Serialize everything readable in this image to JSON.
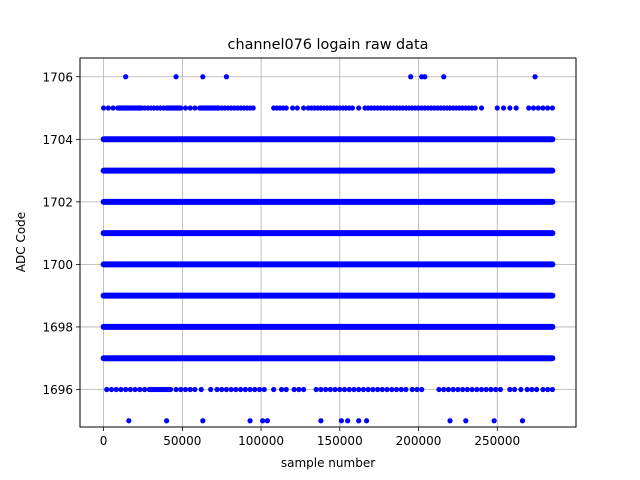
{
  "chart_data": {
    "type": "scatter",
    "title": "channel076 logain raw data",
    "xlabel": "sample number",
    "ylabel": "ADC Code",
    "xlim": [
      -15000,
      300000
    ],
    "ylim": [
      1694.8,
      1706.6
    ],
    "x_ticks": [
      0,
      50000,
      100000,
      150000,
      200000,
      250000
    ],
    "x_tick_labels": [
      "0",
      "50000",
      "100000",
      "150000",
      "200000",
      "250000"
    ],
    "y_ticks": [
      1696,
      1698,
      1700,
      1702,
      1704,
      1706
    ],
    "y_tick_labels": [
      "1696",
      "1698",
      "1700",
      "1702",
      "1704",
      "1706"
    ],
    "grid": true,
    "marker_color": "#0000ff",
    "x_range": [
      0,
      285000
    ],
    "dense_levels": [
      1697,
      1698,
      1699,
      1700,
      1701,
      1702,
      1703,
      1704
    ],
    "sparse_levels": [
      {
        "y": 1705,
        "x": [
          0,
          3000,
          6000,
          9000,
          9600,
          10200,
          10800,
          11400,
          12000,
          12600,
          13200,
          13800,
          14400,
          15000,
          15600,
          16200,
          16800,
          17400,
          18000,
          18600,
          19200,
          19800,
          20400,
          21000,
          21600,
          22200,
          22800,
          23400,
          24000,
          26000,
          28000,
          30000,
          32000,
          34000,
          36000,
          38000,
          40000,
          40600,
          41200,
          41800,
          42400,
          43000,
          43600,
          44200,
          44800,
          45400,
          46000,
          46600,
          47200,
          47800,
          48400,
          49000,
          52000,
          55000,
          58000,
          61000,
          61600,
          62200,
          62800,
          63400,
          64000,
          64600,
          65200,
          65800,
          66400,
          67000,
          67600,
          68200,
          68800,
          69400,
          70000,
          70600,
          71200,
          71800,
          72400,
          73000,
          75000,
          77000,
          79000,
          81000,
          83000,
          85000,
          87000,
          89000,
          91000,
          93000,
          95000,
          108000,
          110000,
          112000,
          114000,
          116000,
          120000,
          123000,
          127000,
          130000,
          132000,
          134000,
          136000,
          138000,
          140000,
          142000,
          144000,
          146000,
          148000,
          150000,
          152000,
          154000,
          156000,
          158000,
          162000,
          166000,
          168000,
          170000,
          172000,
          174000,
          176000,
          178000,
          180000,
          182000,
          184000,
          186000,
          188000,
          190000,
          192000,
          194000,
          196000,
          198000,
          200000,
          202000,
          204000,
          206000,
          208000,
          210000,
          212000,
          214000,
          216000,
          218000,
          220000,
          222000,
          224000,
          226000,
          228000,
          230000,
          232000,
          234000,
          236000,
          240000,
          250000,
          254000,
          258000,
          262000,
          270000,
          273000,
          276000,
          279000,
          282000,
          285000
        ]
      },
      {
        "y": 1696,
        "x": [
          2000,
          5000,
          8000,
          11000,
          14000,
          17000,
          20000,
          23000,
          26000,
          29000,
          30500,
          32000,
          33500,
          35000,
          36500,
          38000,
          39500,
          41000,
          42500,
          46000,
          49000,
          52000,
          55000,
          58000,
          62000,
          68000,
          72000,
          75000,
          78000,
          81000,
          84000,
          87000,
          90000,
          93000,
          96000,
          99000,
          102000,
          108000,
          113000,
          116000,
          121000,
          124000,
          127000,
          135000,
          138000,
          141000,
          144000,
          147000,
          150000,
          153000,
          156000,
          159000,
          162000,
          165000,
          168000,
          171000,
          174000,
          177000,
          180000,
          183000,
          186000,
          189000,
          192000,
          196000,
          199000,
          202000,
          213000,
          216000,
          219000,
          222000,
          225000,
          228000,
          231000,
          234000,
          237000,
          240000,
          243000,
          246000,
          249000,
          252000,
          258000,
          261000,
          265000,
          269000,
          272000,
          275000,
          279000,
          282000,
          285000
        ]
      }
    ],
    "outliers": [
      {
        "x": 14000,
        "y": 1706
      },
      {
        "x": 46000,
        "y": 1706
      },
      {
        "x": 63000,
        "y": 1706
      },
      {
        "x": 78000,
        "y": 1706
      },
      {
        "x": 195000,
        "y": 1706
      },
      {
        "x": 202000,
        "y": 1706
      },
      {
        "x": 204000,
        "y": 1706
      },
      {
        "x": 216000,
        "y": 1706
      },
      {
        "x": 274000,
        "y": 1706
      },
      {
        "x": 16000,
        "y": 1695
      },
      {
        "x": 40000,
        "y": 1695
      },
      {
        "x": 63000,
        "y": 1695
      },
      {
        "x": 93000,
        "y": 1695
      },
      {
        "x": 101000,
        "y": 1695
      },
      {
        "x": 104000,
        "y": 1695
      },
      {
        "x": 138000,
        "y": 1695
      },
      {
        "x": 151000,
        "y": 1695
      },
      {
        "x": 155000,
        "y": 1695
      },
      {
        "x": 162000,
        "y": 1695
      },
      {
        "x": 167000,
        "y": 1695
      },
      {
        "x": 220000,
        "y": 1695
      },
      {
        "x": 230000,
        "y": 1695
      },
      {
        "x": 248000,
        "y": 1695
      },
      {
        "x": 266000,
        "y": 1695
      }
    ]
  }
}
